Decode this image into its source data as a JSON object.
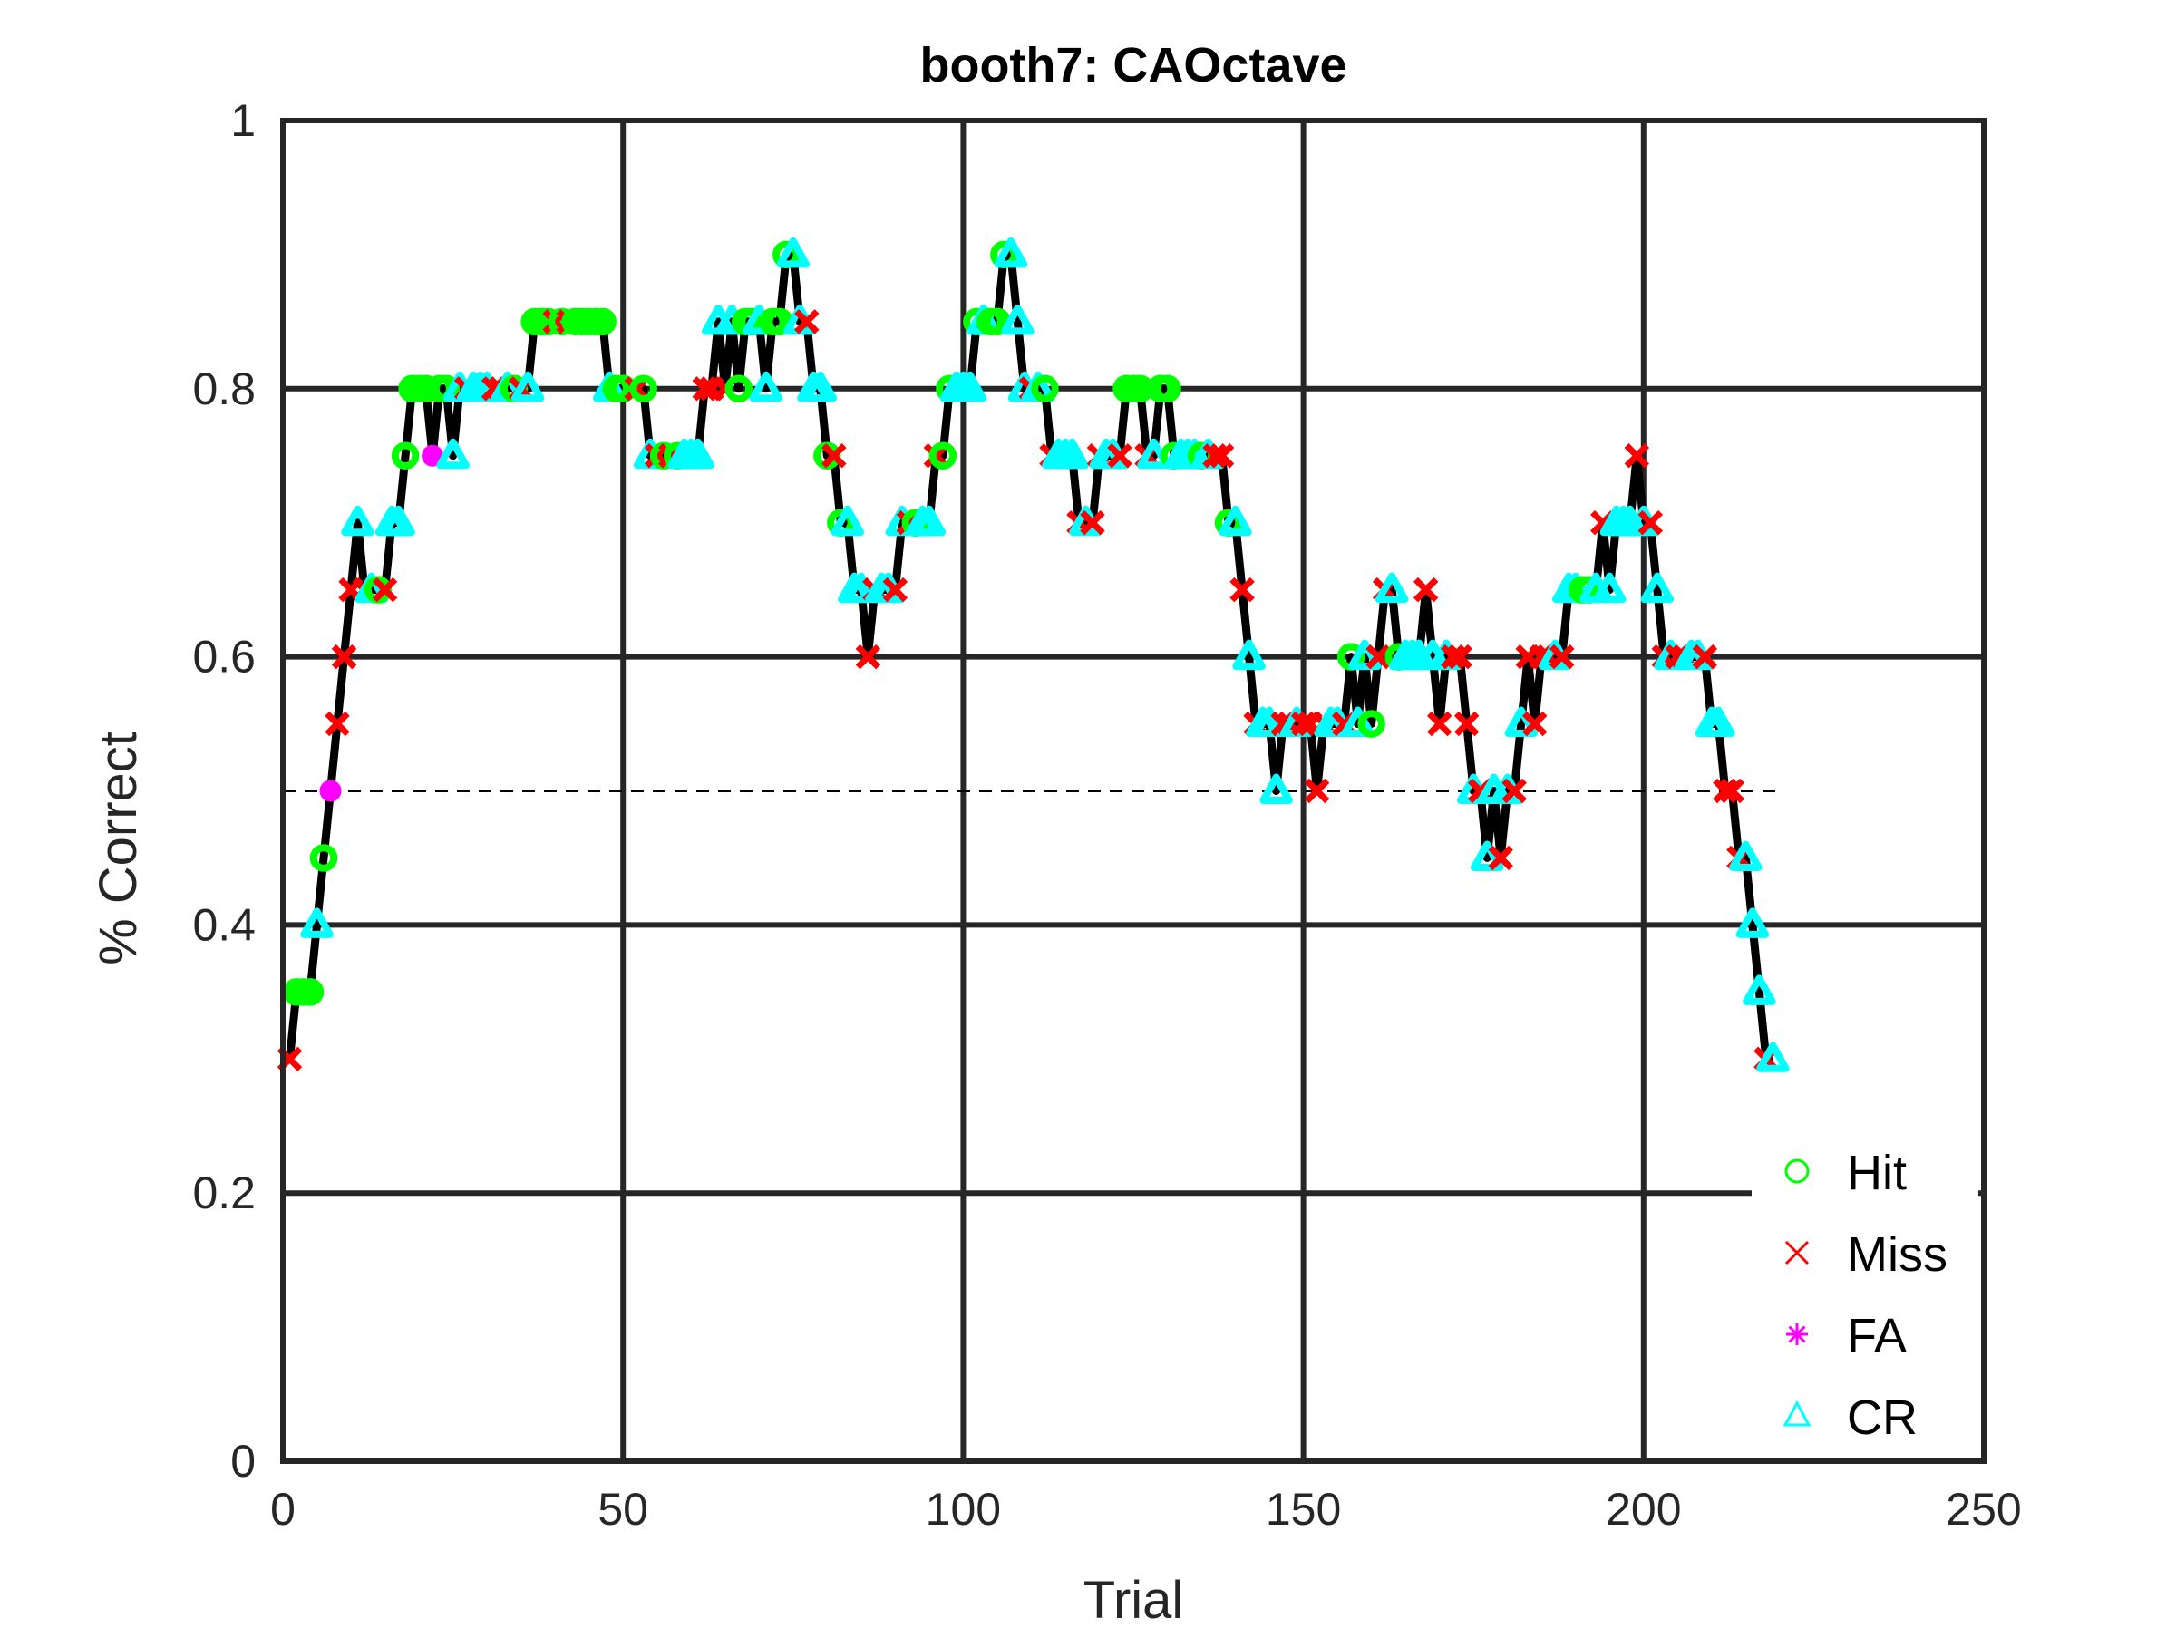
{
  "chart_data": {
    "type": "line",
    "title": "booth7: CAOctave",
    "xlabel": "Trial",
    "ylabel": "% Correct",
    "xlim": [
      0,
      250
    ],
    "ylim": [
      0,
      1
    ],
    "xticks": [
      "0",
      "50",
      "100",
      "150",
      "200",
      "250"
    ],
    "yticks": [
      "0",
      "0.2",
      "0.4",
      "0.6",
      "0.8",
      "1"
    ],
    "grid": true,
    "legend_position": "bottom-right",
    "reference_line": {
      "y": 0.5,
      "style": "dashed",
      "x_range": [
        0,
        220
      ]
    },
    "line_color": "#000000",
    "series": [
      {
        "name": "Hit",
        "marker": "circle",
        "color": "#00ff00"
      },
      {
        "name": "Miss",
        "marker": "x",
        "color": "#ff0000"
      },
      {
        "name": "FA",
        "marker": "asterisk",
        "color": "#ff00ff"
      },
      {
        "name": "CR",
        "marker": "triangle",
        "color": "#00ffff"
      }
    ],
    "trials": [
      [
        1,
        0.3,
        "Miss"
      ],
      [
        2,
        0.35,
        "Hit"
      ],
      [
        3,
        0.35,
        "Hit"
      ],
      [
        4,
        0.35,
        "Hit"
      ],
      [
        5,
        0.4,
        "CR"
      ],
      [
        6,
        0.45,
        "Hit"
      ],
      [
        7,
        0.5,
        "FA"
      ],
      [
        8,
        0.55,
        "Miss"
      ],
      [
        9,
        0.6,
        "Miss"
      ],
      [
        10,
        0.65,
        "Miss"
      ],
      [
        11,
        0.7,
        "CR"
      ],
      [
        12,
        0.65,
        "Miss"
      ],
      [
        13,
        0.65,
        "CR"
      ],
      [
        14,
        0.65,
        "Hit"
      ],
      [
        15,
        0.65,
        "Miss"
      ],
      [
        16,
        0.7,
        "CR"
      ],
      [
        17,
        0.7,
        "CR"
      ],
      [
        18,
        0.75,
        "Hit"
      ],
      [
        19,
        0.8,
        "Hit"
      ],
      [
        20,
        0.8,
        "Hit"
      ],
      [
        21,
        0.8,
        "Hit"
      ],
      [
        22,
        0.75,
        "FA"
      ],
      [
        23,
        0.8,
        "Hit"
      ],
      [
        24,
        0.8,
        "Hit"
      ],
      [
        25,
        0.75,
        "CR"
      ],
      [
        26,
        0.8,
        "CR"
      ],
      [
        27,
        0.8,
        "Miss"
      ],
      [
        28,
        0.8,
        "CR"
      ],
      [
        29,
        0.8,
        "CR"
      ],
      [
        30,
        0.8,
        "CR"
      ],
      [
        31,
        0.8,
        "Miss"
      ],
      [
        32,
        0.8,
        "Miss"
      ],
      [
        33,
        0.8,
        "CR"
      ],
      [
        34,
        0.8,
        "Hit"
      ],
      [
        35,
        0.8,
        "Miss"
      ],
      [
        36,
        0.8,
        "CR"
      ],
      [
        37,
        0.85,
        "Hit"
      ],
      [
        38,
        0.85,
        "Hit"
      ],
      [
        39,
        0.85,
        "Hit"
      ],
      [
        40,
        0.85,
        "Miss"
      ],
      [
        41,
        0.85,
        "Hit"
      ],
      [
        42,
        0.85,
        "Miss"
      ],
      [
        43,
        0.85,
        "Hit"
      ],
      [
        44,
        0.85,
        "Hit"
      ],
      [
        45,
        0.85,
        "Hit"
      ],
      [
        46,
        0.85,
        "Hit"
      ],
      [
        47,
        0.85,
        "Hit"
      ],
      [
        48,
        0.8,
        "CR"
      ],
      [
        49,
        0.8,
        "Hit"
      ],
      [
        50,
        0.8,
        "Hit"
      ],
      [
        52,
        0.8,
        "Miss"
      ],
      [
        53,
        0.8,
        "Hit"
      ],
      [
        54,
        0.75,
        "CR"
      ],
      [
        55,
        0.75,
        "Miss"
      ],
      [
        56,
        0.75,
        "Hit"
      ],
      [
        57,
        0.75,
        "Miss"
      ],
      [
        58,
        0.75,
        "Hit"
      ],
      [
        59,
        0.75,
        "CR"
      ],
      [
        60,
        0.75,
        "CR"
      ],
      [
        61,
        0.75,
        "CR"
      ],
      [
        62,
        0.8,
        "Miss"
      ],
      [
        63,
        0.8,
        "Miss"
      ],
      [
        64,
        0.85,
        "CR"
      ],
      [
        65,
        0.8,
        "Miss"
      ],
      [
        66,
        0.85,
        "CR"
      ],
      [
        67,
        0.8,
        "Hit"
      ],
      [
        68,
        0.85,
        "Hit"
      ],
      [
        69,
        0.85,
        "Hit"
      ],
      [
        70,
        0.85,
        "CR"
      ],
      [
        71,
        0.8,
        "CR"
      ],
      [
        72,
        0.85,
        "Hit"
      ],
      [
        73,
        0.85,
        "Hit"
      ],
      [
        74,
        0.9,
        "Hit"
      ],
      [
        75,
        0.9,
        "CR"
      ],
      [
        76,
        0.85,
        "CR"
      ],
      [
        77,
        0.85,
        "Miss"
      ],
      [
        78,
        0.8,
        "CR"
      ],
      [
        79,
        0.8,
        "CR"
      ],
      [
        80,
        0.75,
        "Hit"
      ],
      [
        81,
        0.75,
        "Miss"
      ],
      [
        82,
        0.7,
        "Hit"
      ],
      [
        83,
        0.7,
        "CR"
      ],
      [
        84,
        0.65,
        "CR"
      ],
      [
        85,
        0.65,
        "CR"
      ],
      [
        86,
        0.6,
        "Miss"
      ],
      [
        87,
        0.65,
        "Miss"
      ],
      [
        88,
        0.65,
        "CR"
      ],
      [
        89,
        0.65,
        "CR"
      ],
      [
        90,
        0.65,
        "Miss"
      ],
      [
        91,
        0.7,
        "CR"
      ],
      [
        92,
        0.7,
        "Miss"
      ],
      [
        93,
        0.7,
        "Hit"
      ],
      [
        94,
        0.7,
        "CR"
      ],
      [
        95,
        0.7,
        "CR"
      ],
      [
        96,
        0.75,
        "Miss"
      ],
      [
        97,
        0.75,
        "Hit"
      ],
      [
        98,
        0.8,
        "Hit"
      ],
      [
        99,
        0.8,
        "CR"
      ],
      [
        100,
        0.8,
        "CR"
      ],
      [
        101,
        0.8,
        "CR"
      ],
      [
        102,
        0.85,
        "Hit"
      ],
      [
        103,
        0.85,
        "CR"
      ],
      [
        104,
        0.85,
        "Hit"
      ],
      [
        105,
        0.85,
        "Hit"
      ],
      [
        106,
        0.9,
        "Hit"
      ],
      [
        107,
        0.9,
        "CR"
      ],
      [
        108,
        0.85,
        "CR"
      ],
      [
        109,
        0.8,
        "CR"
      ],
      [
        110,
        0.8,
        "Miss"
      ],
      [
        111,
        0.8,
        "CR"
      ],
      [
        112,
        0.8,
        "Hit"
      ],
      [
        113,
        0.75,
        "Miss"
      ],
      [
        114,
        0.75,
        "CR"
      ],
      [
        115,
        0.75,
        "CR"
      ],
      [
        116,
        0.75,
        "CR"
      ],
      [
        117,
        0.7,
        "Miss"
      ],
      [
        118,
        0.7,
        "CR"
      ],
      [
        119,
        0.7,
        "Miss"
      ],
      [
        120,
        0.75,
        "Miss"
      ],
      [
        121,
        0.75,
        "CR"
      ],
      [
        122,
        0.75,
        "CR"
      ],
      [
        123,
        0.75,
        "Miss"
      ],
      [
        124,
        0.8,
        "Hit"
      ],
      [
        125,
        0.8,
        "Hit"
      ],
      [
        126,
        0.8,
        "Hit"
      ],
      [
        127,
        0.75,
        "Miss"
      ],
      [
        128,
        0.75,
        "CR"
      ],
      [
        129,
        0.8,
        "Hit"
      ],
      [
        130,
        0.8,
        "Hit"
      ],
      [
        131,
        0.75,
        "Hit"
      ],
      [
        132,
        0.75,
        "CR"
      ],
      [
        133,
        0.75,
        "CR"
      ],
      [
        134,
        0.75,
        "CR"
      ],
      [
        135,
        0.75,
        "Hit"
      ],
      [
        136,
        0.75,
        "CR"
      ],
      [
        137,
        0.75,
        "Miss"
      ],
      [
        138,
        0.75,
        "Miss"
      ],
      [
        139,
        0.7,
        "Hit"
      ],
      [
        140,
        0.7,
        "CR"
      ],
      [
        141,
        0.65,
        "Miss"
      ],
      [
        142,
        0.6,
        "CR"
      ],
      [
        143,
        0.55,
        "Miss"
      ],
      [
        144,
        0.55,
        "CR"
      ],
      [
        145,
        0.55,
        "CR"
      ],
      [
        146,
        0.5,
        "CR"
      ],
      [
        147,
        0.55,
        "Miss"
      ],
      [
        148,
        0.55,
        "Miss"
      ],
      [
        149,
        0.55,
        "CR"
      ],
      [
        150,
        0.55,
        "Miss"
      ],
      [
        151,
        0.55,
        "Miss"
      ],
      [
        152,
        0.5,
        "Miss"
      ],
      [
        153,
        0.55,
        "Miss"
      ],
      [
        154,
        0.55,
        "CR"
      ],
      [
        155,
        0.55,
        "CR"
      ],
      [
        156,
        0.55,
        "Miss"
      ],
      [
        157,
        0.6,
        "Hit"
      ],
      [
        158,
        0.55,
        "CR"
      ],
      [
        159,
        0.6,
        "CR"
      ],
      [
        160,
        0.55,
        "Hit"
      ],
      [
        161,
        0.6,
        "Miss"
      ],
      [
        162,
        0.65,
        "Miss"
      ],
      [
        163,
        0.65,
        "CR"
      ],
      [
        164,
        0.6,
        "Hit"
      ],
      [
        165,
        0.6,
        "CR"
      ],
      [
        166,
        0.6,
        "CR"
      ],
      [
        167,
        0.6,
        "CR"
      ],
      [
        168,
        0.65,
        "Miss"
      ],
      [
        169,
        0.6,
        "CR"
      ],
      [
        170,
        0.55,
        "Miss"
      ],
      [
        171,
        0.6,
        "CR"
      ],
      [
        172,
        0.6,
        "Miss"
      ],
      [
        173,
        0.6,
        "Miss"
      ],
      [
        174,
        0.55,
        "Miss"
      ],
      [
        175,
        0.5,
        "CR"
      ],
      [
        176,
        0.5,
        "Miss"
      ],
      [
        177,
        0.45,
        "CR"
      ],
      [
        178,
        0.5,
        "CR"
      ],
      [
        179,
        0.45,
        "Miss"
      ],
      [
        180,
        0.5,
        "CR"
      ],
      [
        181,
        0.5,
        "Miss"
      ],
      [
        182,
        0.55,
        "CR"
      ],
      [
        183,
        0.6,
        "Miss"
      ],
      [
        184,
        0.55,
        "Miss"
      ],
      [
        185,
        0.6,
        "Miss"
      ],
      [
        186,
        0.6,
        "Miss"
      ],
      [
        187,
        0.6,
        "CR"
      ],
      [
        188,
        0.6,
        "Miss"
      ],
      [
        189,
        0.65,
        "CR"
      ],
      [
        190,
        0.65,
        "CR"
      ],
      [
        191,
        0.65,
        "Hit"
      ],
      [
        192,
        0.65,
        "Hit"
      ],
      [
        193,
        0.65,
        "CR"
      ],
      [
        194,
        0.7,
        "Miss"
      ],
      [
        195,
        0.65,
        "CR"
      ],
      [
        196,
        0.7,
        "CR"
      ],
      [
        197,
        0.7,
        "CR"
      ],
      [
        198,
        0.7,
        "CR"
      ],
      [
        199,
        0.75,
        "Miss"
      ],
      [
        200,
        0.7,
        "CR"
      ],
      [
        201,
        0.7,
        "Miss"
      ],
      [
        202,
        0.65,
        "CR"
      ],
      [
        203,
        0.6,
        "Miss"
      ],
      [
        204,
        0.6,
        "CR"
      ],
      [
        205,
        0.6,
        "Miss"
      ],
      [
        206,
        0.6,
        "Miss"
      ],
      [
        207,
        0.6,
        "CR"
      ],
      [
        208,
        0.6,
        "CR"
      ],
      [
        209,
        0.6,
        "Miss"
      ],
      [
        210,
        0.55,
        "CR"
      ],
      [
        211,
        0.55,
        "CR"
      ],
      [
        212,
        0.5,
        "Miss"
      ],
      [
        213,
        0.5,
        "Miss"
      ],
      [
        214,
        0.45,
        "Miss"
      ],
      [
        215,
        0.45,
        "CR"
      ],
      [
        216,
        0.4,
        "CR"
      ],
      [
        217,
        0.35,
        "CR"
      ],
      [
        218,
        0.3,
        "Miss"
      ],
      [
        219,
        0.3,
        "CR"
      ]
    ]
  }
}
